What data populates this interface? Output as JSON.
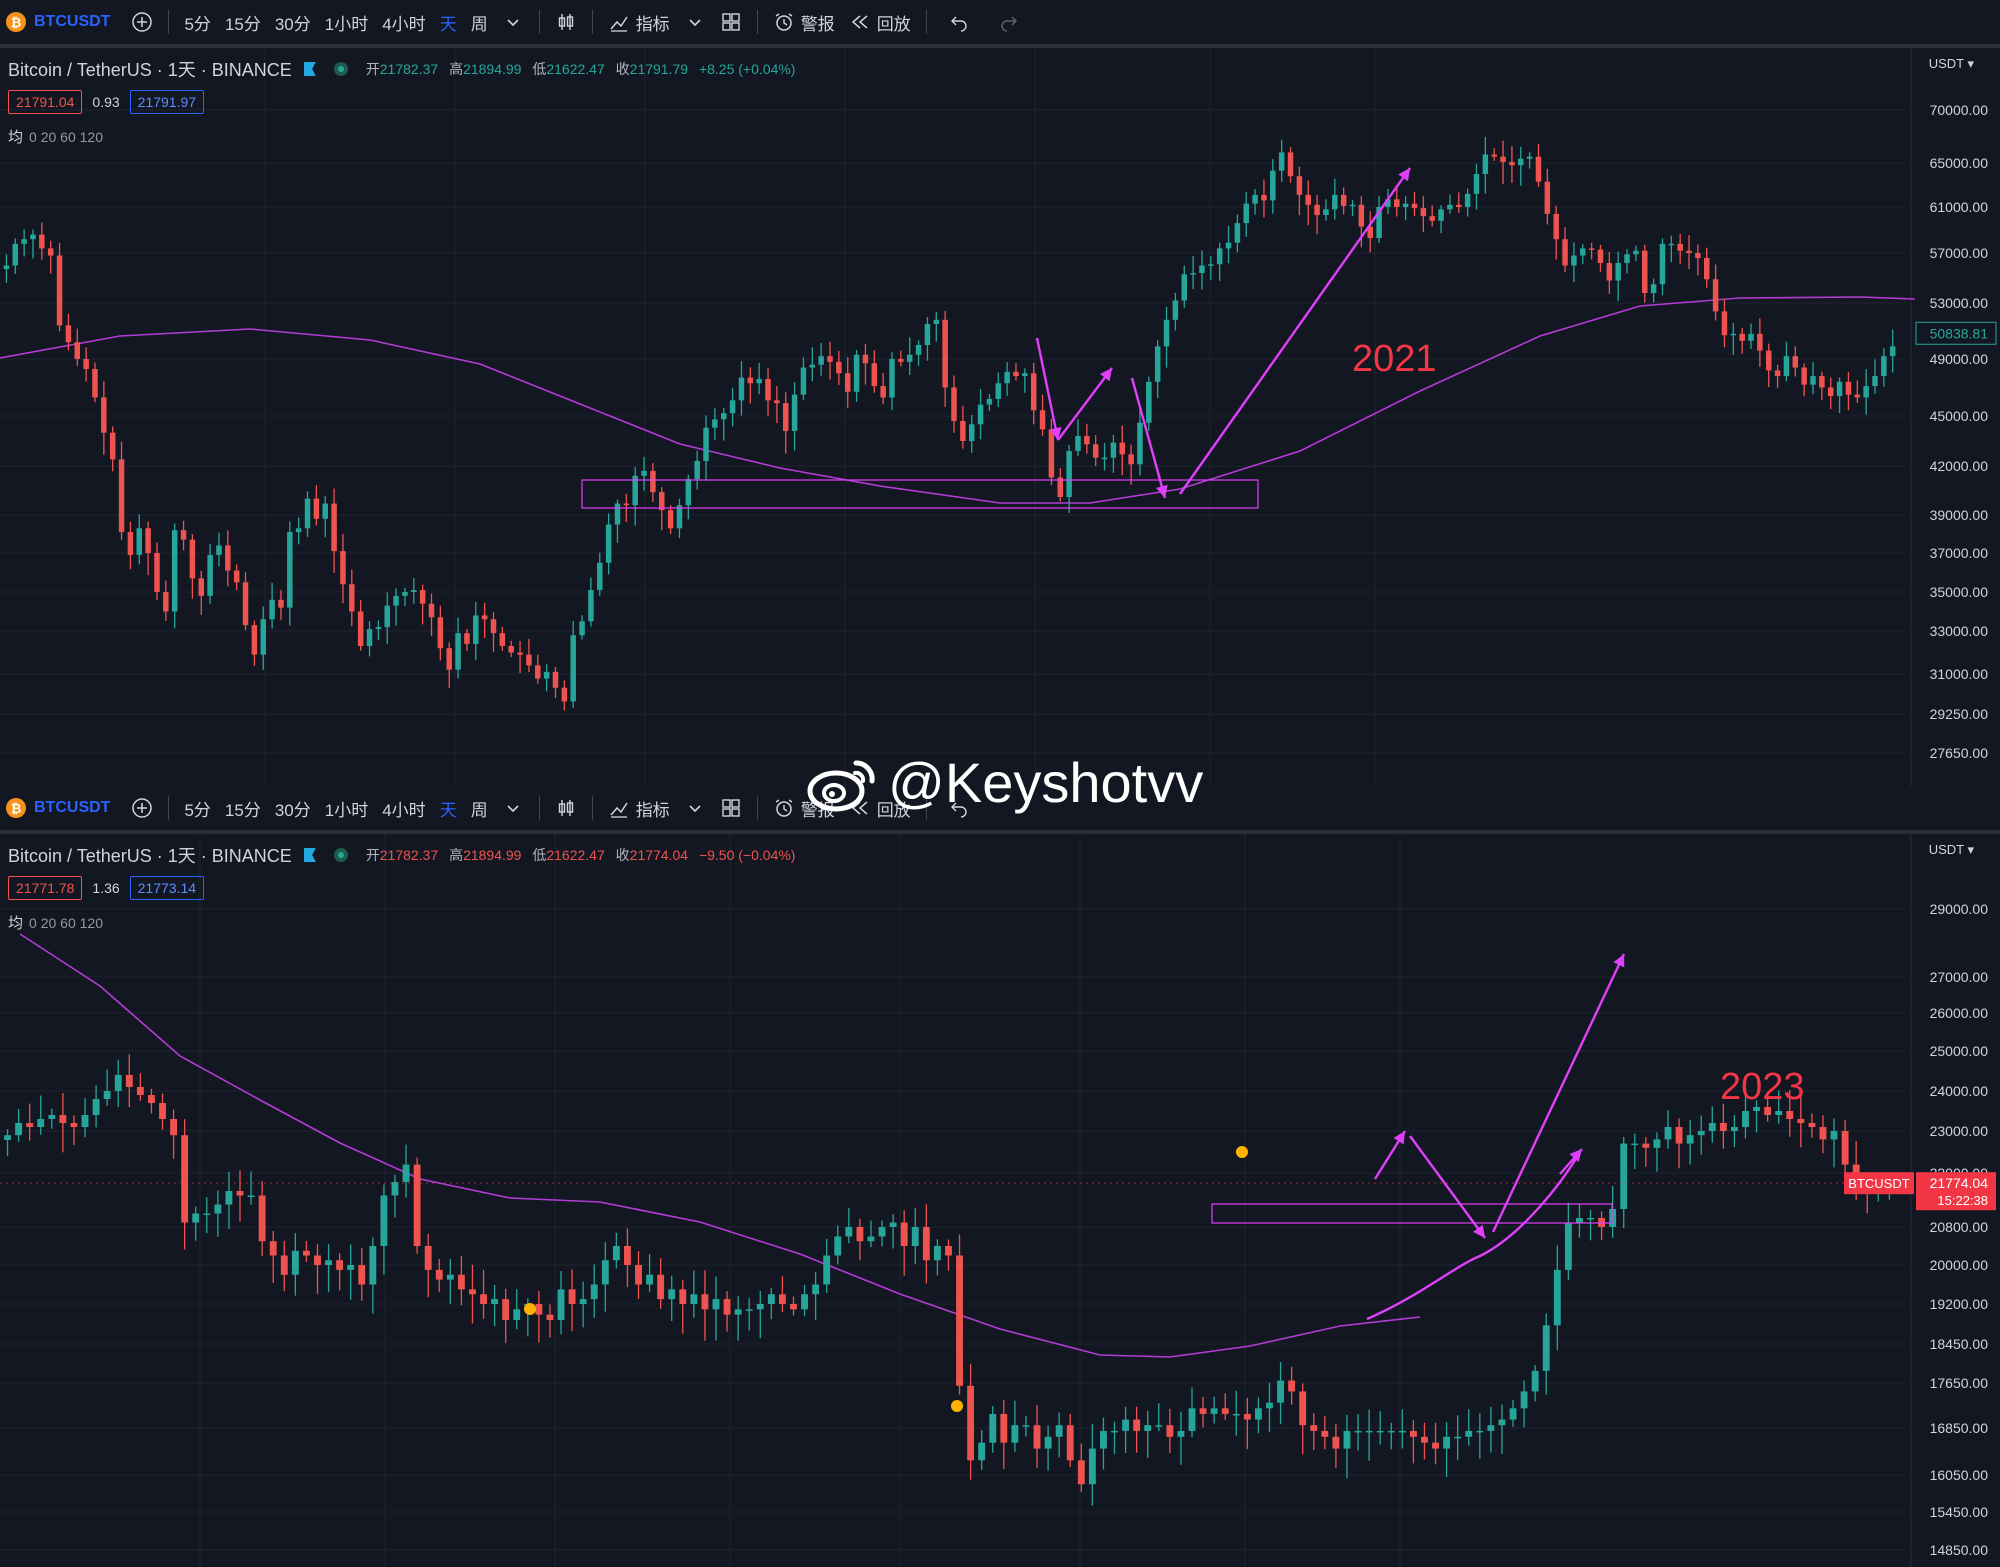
{
  "watermark": {
    "text": "@Keyshotvv",
    "icon": "weibo-icon"
  },
  "top": {
    "toolbar": {
      "symbol": "BTCUSDT",
      "symbol_icon": "bitcoin-icon",
      "intervals": [
        "5分",
        "15分",
        "30分",
        "1小时",
        "4小时",
        "天",
        "周"
      ],
      "active_interval": "天",
      "indicators_label": "指标",
      "alert_label": "警报",
      "replay_label": "回放"
    },
    "legend": {
      "title": "Bitcoin / TetherUS · 1天 · BINANCE",
      "open_label": "开",
      "open": "21782.37",
      "high_label": "高",
      "high": "21894.99",
      "low_label": "低",
      "low": "21622.47",
      "close_label": "收",
      "close": "21791.79",
      "change": "+8.25 (+0.04%)",
      "direction": "up"
    },
    "quote": {
      "sell": "21791.04",
      "spread": "0.93",
      "buy": "21791.97"
    },
    "ma": {
      "label": "均",
      "values": "0 20 60 120"
    },
    "currency": "USDT",
    "last_price_tag": "50838.81",
    "year_label": "2021"
  },
  "bottom": {
    "toolbar": {
      "symbol": "BTCUSDT",
      "symbol_icon": "bitcoin-icon",
      "intervals": [
        "5分",
        "15分",
        "30分",
        "1小时",
        "4小时",
        "天",
        "周"
      ],
      "active_interval": "天",
      "indicators_label": "指标",
      "alert_label": "警报",
      "replay_label": "回放"
    },
    "legend": {
      "title": "Bitcoin / TetherUS · 1天 · BINANCE",
      "open_label": "开",
      "open": "21782.37",
      "high_label": "高",
      "high": "21894.99",
      "low_label": "低",
      "low": "21622.47",
      "close_label": "收",
      "close": "21774.04",
      "change": "−9.50 (−0.04%)",
      "direction": "down"
    },
    "quote": {
      "sell": "21771.78",
      "spread": "1.36",
      "buy": "21773.14"
    },
    "ma": {
      "label": "均",
      "values": "0 20 60 120"
    },
    "currency": "USDT",
    "last_price_tag_symbol": "BTCUSDT",
    "last_price_tag": "21774.04",
    "countdown": "15:22:38",
    "year_label": "2023"
  },
  "colors": {
    "background": "#131722",
    "up": "#26a69a",
    "down": "#ef5350",
    "ma_line": "#b43cd6",
    "annotation": "#e040fb",
    "year_label": "#f23645"
  },
  "chart_data": [
    {
      "type": "candlestick",
      "title": "Bitcoin / TetherUS · 1天 · BINANCE",
      "ylim": [
        27650,
        70000
      ],
      "y_ticks": [
        70000,
        65000,
        61000,
        57000,
        53000,
        49000,
        45000,
        42000,
        39000,
        37000,
        35000,
        33000,
        31000,
        29250,
        27650
      ],
      "y_tick_labels": [
        "70000.00",
        "65000.00",
        "61000.00",
        "57000.00",
        "53000.00",
        "49000.00",
        "45000.00",
        "42000.00",
        "39000.00",
        "37000.00",
        "35000.00",
        "33000.00",
        "31000.00",
        "29250.00",
        "27650.00"
      ],
      "closes": [
        56000,
        57800,
        58200,
        58600,
        57400,
        56800,
        51400,
        50200,
        49000,
        48300,
        46300,
        44000,
        42400,
        38100,
        36900,
        38300,
        37000,
        35000,
        34000,
        38200,
        37700,
        35700,
        34800,
        36900,
        37400,
        36100,
        35500,
        33300,
        31900,
        33600,
        34600,
        34200,
        38100,
        38300,
        40000,
        38800,
        39700,
        37100,
        35400,
        34000,
        32300,
        33100,
        33200,
        34300,
        34800,
        35000,
        35100,
        34400,
        33700,
        32200,
        31200,
        32900,
        32400,
        33800,
        33600,
        32900,
        32300,
        32000,
        31900,
        31400,
        30800,
        31100,
        30400,
        29800,
        32800,
        33500,
        35100,
        36500,
        38500,
        39700,
        39600,
        41400,
        41700,
        40400,
        39300,
        38300,
        39600,
        41200,
        42300,
        44300,
        44800,
        45200,
        46100,
        47700,
        47300,
        47600,
        46100,
        45900,
        44100,
        46500,
        48400,
        48600,
        49200,
        48800,
        48000,
        46700,
        49300,
        48700,
        47100,
        46300,
        49000,
        48800,
        49300,
        50000,
        51500,
        51800,
        47000,
        44700,
        43500,
        44500,
        45800,
        46200,
        47300,
        48100,
        47800,
        48000,
        45400,
        44200,
        41300,
        40100,
        42900,
        43800,
        43300,
        42500,
        42500,
        43400,
        42700,
        42100,
        44600,
        47400,
        49900,
        51800,
        53200,
        55300,
        55400,
        56000,
        56100,
        57400,
        57900,
        59600,
        61300,
        62100,
        61600,
        64300,
        66000,
        63800,
        62100,
        61200,
        60300,
        60800,
        62100,
        61100,
        61200,
        59300,
        58300,
        61000,
        61700,
        61000,
        61300,
        60900,
        60200,
        59800,
        60800,
        61200,
        61000,
        62200,
        64000,
        65800,
        65600,
        65100,
        64800,
        65400,
        65600,
        63300,
        60400,
        58200,
        56000,
        56800,
        57400,
        57300,
        56200,
        54800,
        56200,
        56900,
        57200,
        53800,
        54500,
        57800,
        57800,
        57200,
        57000,
        56600,
        54900,
        52400,
        50700,
        50800,
        50300,
        50800,
        49600,
        48200,
        47800,
        49200,
        48400,
        47200,
        47800,
        47000,
        46400,
        47400,
        46500,
        46300,
        47100,
        47800,
        49200,
        49900
      ],
      "ma_line": "single purple moving average"
    },
    {
      "type": "candlestick",
      "title": "Bitcoin / TetherUS · 1天 · BINANCE",
      "ylim": [
        14850,
        29000
      ],
      "y_ticks": [
        29000,
        27000,
        26000,
        25000,
        24000,
        23000,
        22000,
        20800,
        20000,
        19200,
        18450,
        17650,
        16850,
        16050,
        15450,
        14850
      ],
      "y_tick_labels": [
        "29000.00",
        "27000.00",
        "26000.00",
        "25000.00",
        "24000.00",
        "23000.00",
        "22000.00",
        "20800.00",
        "20000.00",
        "19200.00",
        "18450.00",
        "17650.00",
        "16850.00",
        "16050.00",
        "15450.00",
        "14850.00"
      ],
      "closes": [
        22900,
        23200,
        23100,
        23300,
        23400,
        23200,
        23100,
        23400,
        23800,
        24000,
        24400,
        24100,
        23900,
        23700,
        23300,
        22900,
        20900,
        21100,
        21100,
        21300,
        21600,
        21500,
        21500,
        20500,
        20200,
        19800,
        20300,
        20200,
        20000,
        20100,
        19900,
        20000,
        19600,
        20400,
        21500,
        21800,
        22200,
        20400,
        19900,
        19700,
        19800,
        19500,
        19400,
        19200,
        19300,
        18900,
        19100,
        19200,
        19000,
        18900,
        19500,
        19200,
        19300,
        19600,
        20100,
        20400,
        20000,
        19600,
        19800,
        19300,
        19500,
        19200,
        19400,
        19100,
        19300,
        19000,
        19100,
        19100,
        19200,
        19400,
        19200,
        19100,
        19400,
        19600,
        20200,
        20600,
        20800,
        20500,
        20600,
        20800,
        20900,
        20400,
        20800,
        20100,
        20400,
        20200,
        17600,
        16300,
        16600,
        17100,
        16600,
        16900,
        16900,
        16500,
        16700,
        16900,
        16300,
        15900,
        16500,
        16800,
        16800,
        17000,
        16800,
        16900,
        16900,
        16700,
        16800,
        17200,
        17100,
        17200,
        17100,
        17100,
        17000,
        17200,
        17300,
        17700,
        17500,
        16900,
        16800,
        16700,
        16500,
        16800,
        16800,
        16800,
        16800,
        16800,
        16800,
        16700,
        16600,
        16500,
        16700,
        16700,
        16800,
        16800,
        16900,
        17000,
        17200,
        17500,
        17900,
        18800,
        19900,
        20900,
        21000,
        21000,
        20800,
        21200,
        22700,
        22700,
        22600,
        22800,
        23100,
        22700,
        22900,
        23000,
        23200,
        23000,
        23100,
        23500,
        23600,
        23400,
        23500,
        23300,
        23200,
        23100,
        22800,
        23000,
        22200,
        21800,
        21700,
        21700,
        21800
      ],
      "ma_line": "single purple moving average"
    }
  ]
}
